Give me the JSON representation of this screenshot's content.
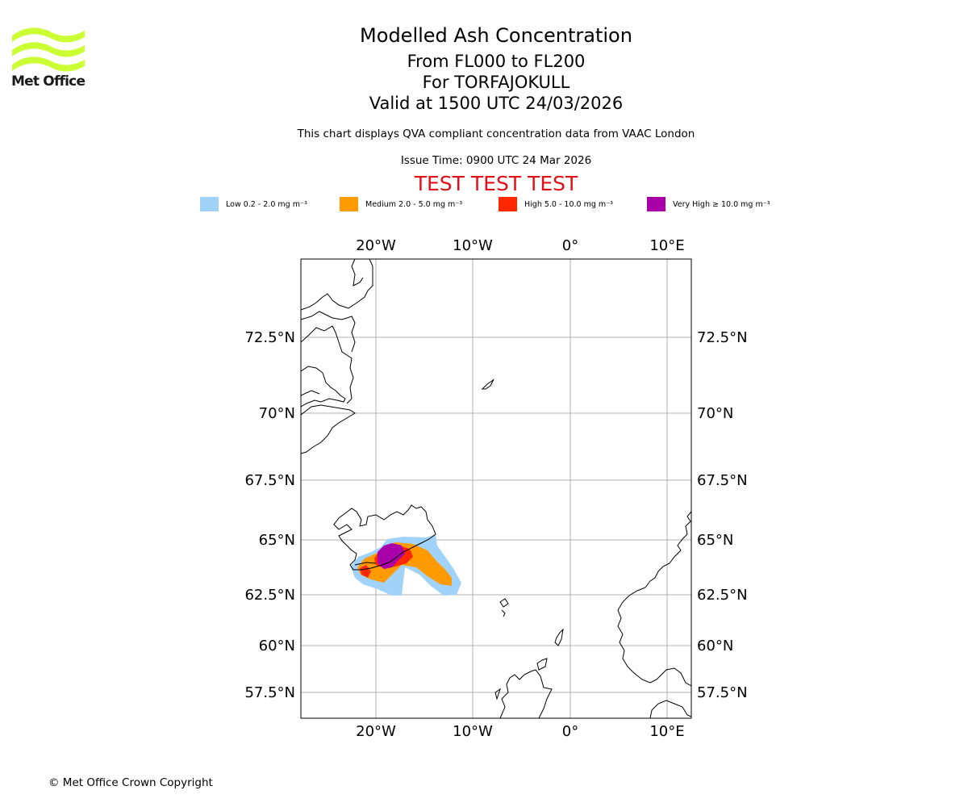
{
  "branding": {
    "logo_text": "Met Office",
    "logo_color": "#ccff33",
    "copyright": "© Met Office Crown Copyright"
  },
  "header": {
    "title": "Modelled Ash Concentration",
    "levels": "From FL000 to FL200",
    "volcano": "For TORFAJOKULL",
    "valid": "Valid at 1500 UTC 24/03/2026",
    "note": "This chart displays QVA compliant concentration data from VAAC London",
    "issue": "Issue Time: 0900 UTC 24 Mar 2026",
    "test_banner": "TEST TEST TEST",
    "test_color": "#e0101b"
  },
  "legend": [
    {
      "label": "Low 0.2 - 2.0 mg m⁻³",
      "color": "#a0d2fa"
    },
    {
      "label": "Medium 2.0 - 5.0 mg m⁻³",
      "color": "#ff9a00"
    },
    {
      "label": "High 5.0 - 10.0 mg m⁻³",
      "color": "#ff2800"
    },
    {
      "label": "Very High ≥ 10.0 mg m⁻³",
      "color": "#aa00aa"
    }
  ],
  "map": {
    "lon_labels": [
      "20°W",
      "10°W",
      "0°",
      "10°E"
    ],
    "lat_labels": [
      "72.5°N",
      "70°N",
      "67.5°N",
      "65°N",
      "62.5°N",
      "60°N",
      "57.5°N"
    ],
    "gridline_color": "#b0b0b0"
  }
}
